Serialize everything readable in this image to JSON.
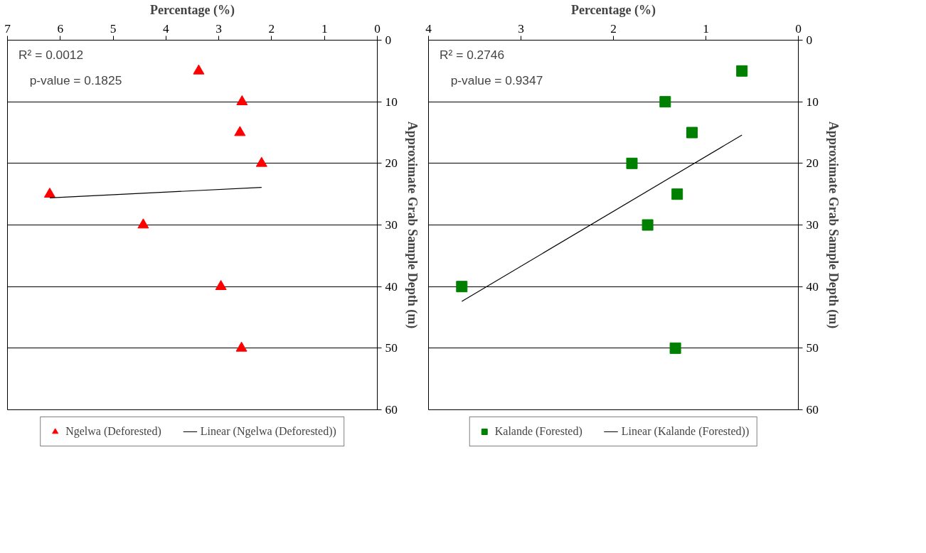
{
  "chart_data": [
    {
      "type": "scatter",
      "xlabel": "Percentage (%)",
      "ylabel": "Approximate Grab Sample Depth (m)",
      "xlim": [
        7,
        0
      ],
      "xticks": [
        7,
        6,
        5,
        4,
        3,
        2,
        1,
        0
      ],
      "ylim": [
        60,
        0
      ],
      "yticks": [
        0,
        10,
        20,
        30,
        40,
        50,
        60
      ],
      "grid": "y",
      "legend": "bottom",
      "annotations": [
        "R² = 0.0012",
        "p-value = 0.1825"
      ],
      "series": [
        {
          "name": "Ngelwa (Deforested)",
          "type": "scatter",
          "marker": "triangle",
          "color": "#ff0000",
          "x": [
            3.38,
            2.56,
            2.6,
            2.19,
            6.2,
            4.43,
            2.96,
            2.57
          ],
          "values": [
            5,
            10,
            15,
            20,
            25,
            30,
            40,
            50
          ]
        },
        {
          "name": "Linear (Ngelwa (Deforested))",
          "type": "line",
          "color": "#000000",
          "x": [
            6.2,
            2.19
          ],
          "values": [
            25.6,
            23.9
          ]
        }
      ]
    },
    {
      "type": "scatter",
      "xlabel": "Percentage (%)",
      "ylabel": "Approximate Grab Sample Depth (m)",
      "xlim": [
        4,
        0
      ],
      "xticks": [
        4,
        3,
        2,
        1,
        0
      ],
      "ylim": [
        60,
        0
      ],
      "yticks": [
        0,
        10,
        20,
        30,
        40,
        50,
        60
      ],
      "grid": "y",
      "legend": "bottom",
      "annotations": [
        "R² = 0.2746",
        "p-value = 0.9347"
      ],
      "series": [
        {
          "name": "Kalande (Forested)",
          "type": "scatter",
          "marker": "square",
          "color": "#008000",
          "x": [
            0.61,
            1.44,
            1.15,
            1.8,
            1.31,
            1.63,
            3.64,
            1.33
          ],
          "values": [
            5,
            10,
            15,
            20,
            25,
            30,
            40,
            50
          ]
        },
        {
          "name": "Linear (Kalande (Forested))",
          "type": "line",
          "color": "#000000",
          "x": [
            3.64,
            0.61
          ],
          "values": [
            42.4,
            15.4
          ]
        }
      ]
    }
  ]
}
